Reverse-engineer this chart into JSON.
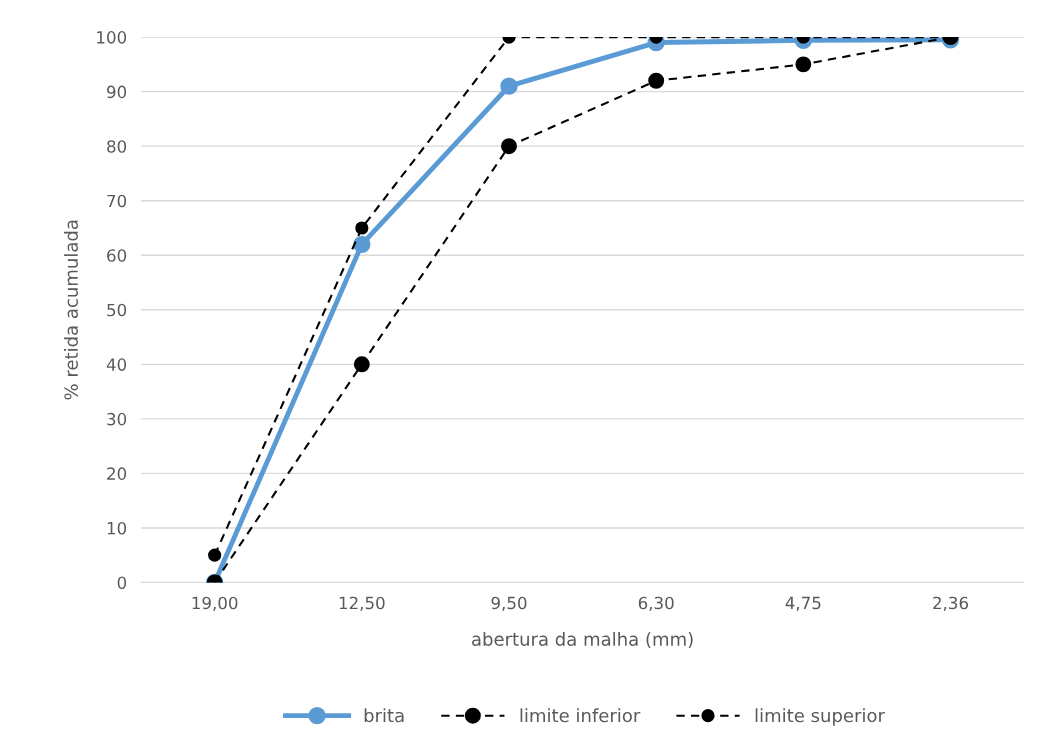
{
  "chart_data": {
    "type": "line",
    "xlabel": "abertura da malha (mm)",
    "ylabel": "% retida acumulada",
    "categories": [
      "19,00",
      "12,50",
      "9,50",
      "6,30",
      "4,75",
      "2,36"
    ],
    "series": [
      {
        "name": "brita",
        "color": "#5b9bd5",
        "line_style": "solid",
        "values": [
          0,
          62,
          91,
          99,
          99.4,
          99.5
        ]
      },
      {
        "name": "limite inferior",
        "color": "#000000",
        "line_style": "dashed",
        "values": [
          0,
          40,
          80,
          92,
          95,
          100
        ]
      },
      {
        "name": "limite superior",
        "color": "#000000",
        "line_style": "dashed",
        "values": [
          5,
          65,
          100,
          100,
          100,
          100
        ]
      }
    ],
    "ylim": [
      0,
      100
    ],
    "yticks": [
      0,
      10,
      20,
      30,
      40,
      50,
      60,
      70,
      80,
      90,
      100
    ],
    "grid": "y",
    "legend": "bottom",
    "marker": "circle"
  }
}
